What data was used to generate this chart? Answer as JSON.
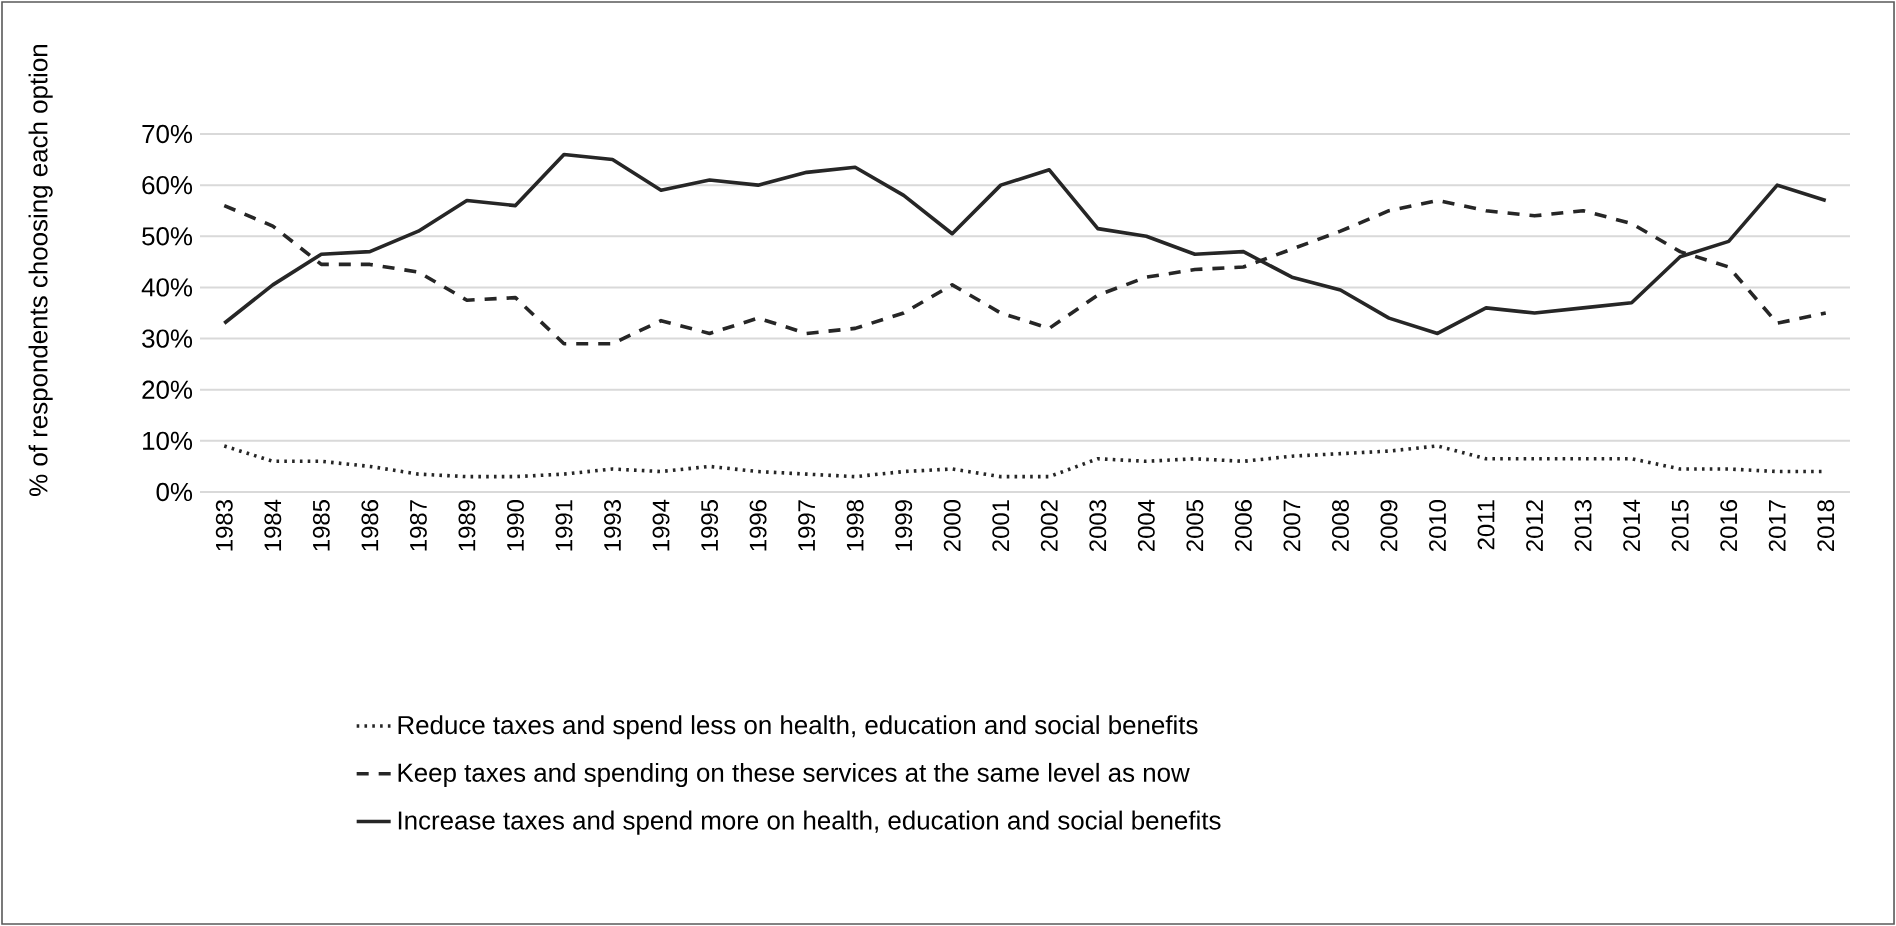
{
  "chart_data": {
    "type": "line",
    "ylabel": "% of respondents choosing each option",
    "categories": [
      "1983",
      "1984",
      "1985",
      "1986",
      "1987",
      "1989",
      "1990",
      "1991",
      "1993",
      "1994",
      "1995",
      "1996",
      "1997",
      "1998",
      "1999",
      "2000",
      "2001",
      "2002",
      "2003",
      "2004",
      "2005",
      "2006",
      "2007",
      "2008",
      "2009",
      "2010",
      "2011",
      "2012",
      "2013",
      "2014",
      "2015",
      "2016",
      "2017",
      "2018"
    ],
    "series": [
      {
        "name": "Reduce taxes and spend less on health, education and social benefits",
        "color": "#262626",
        "line_style": "dotted",
        "values": [
          9,
          6,
          6,
          5,
          3.5,
          3,
          3,
          3.5,
          4.5,
          4,
          5,
          4,
          3.5,
          3,
          4,
          4.5,
          3,
          3,
          6.5,
          6,
          6.5,
          6,
          7,
          7.5,
          8,
          9,
          6.5,
          6.5,
          6.5,
          6.5,
          4.5,
          4.5,
          4,
          4
        ]
      },
      {
        "name": "Keep taxes and spending on these services at the same level as now",
        "color": "#262626",
        "line_style": "dashed",
        "values": [
          56,
          52,
          44.5,
          44.5,
          43,
          37.5,
          38,
          29,
          29,
          33.5,
          31,
          34,
          31,
          32,
          35,
          40.5,
          35,
          32,
          38.5,
          42,
          43.5,
          44,
          47.5,
          51,
          55,
          57,
          55,
          54,
          55,
          52.5,
          47,
          44,
          33,
          35
        ]
      },
      {
        "name": "Increase taxes and spend more on health, education and social benefits",
        "color": "#262626",
        "line_style": "solid",
        "values": [
          33,
          40.5,
          46.5,
          47,
          51,
          57,
          56,
          66,
          65,
          59,
          61,
          60,
          62.5,
          63.5,
          58,
          50.5,
          60,
          63,
          51.5,
          50,
          46.5,
          47,
          42,
          39.5,
          34,
          31,
          36,
          35,
          36,
          37,
          46,
          49,
          60,
          57
        ]
      }
    ],
    "ylim": [
      0,
      70
    ],
    "yticks": [
      {
        "value": 0,
        "label": "0%"
      },
      {
        "value": 10,
        "label": "10%"
      },
      {
        "value": 20,
        "label": "20%"
      },
      {
        "value": 30,
        "label": "30%"
      },
      {
        "value": 40,
        "label": "40%"
      },
      {
        "value": 50,
        "label": "50%"
      },
      {
        "value": 60,
        "label": "60%"
      },
      {
        "value": 70,
        "label": "70%"
      }
    ],
    "grid": "y",
    "legend": "bottom",
    "marker": "none"
  }
}
